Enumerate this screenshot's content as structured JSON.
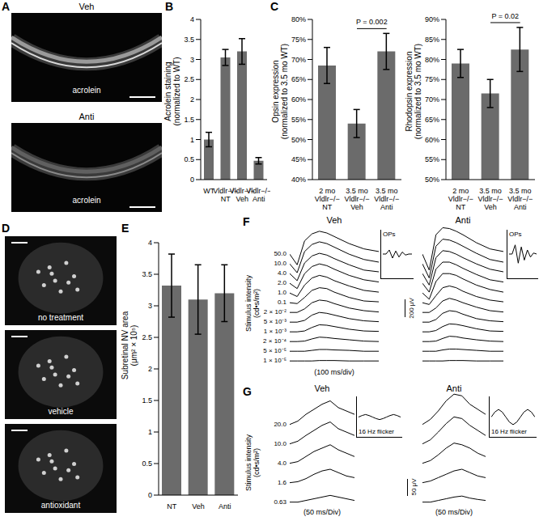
{
  "panel_labels": [
    "A",
    "B",
    "C",
    "D",
    "E",
    "F",
    "G"
  ],
  "images": {
    "A": [
      {
        "title": "Veh",
        "label": "acrolein"
      },
      {
        "title": "Anti",
        "label": "acrolein"
      }
    ],
    "D": [
      "no treatment",
      "vehicle",
      "antioxidant"
    ]
  },
  "chart_data": [
    {
      "type": "bar",
      "ylabel": "Acrolein staining (normalized to WT)",
      "categories": [
        "WT",
        "Vldlr−/− NT",
        "Vldlr−/− Veh",
        "Vldlr−/− Anti"
      ],
      "values": [
        1.0,
        3.05,
        3.2,
        0.47
      ],
      "errors": [
        0.18,
        0.2,
        0.32,
        0.08
      ],
      "color": "#6b6b6b",
      "ylim": [
        0,
        4
      ],
      "yticks": [
        0,
        0.5,
        1,
        1.5,
        2,
        2.5,
        3,
        3.5,
        4
      ]
    },
    {
      "type": "bar",
      "ylabel": "Opsin expression (normalized to 3.5 mo WT)",
      "categories": [
        "2 mo Vldlr−/− NT",
        "3.5 mo Vldlr−/− Veh",
        "3.5 mo Vldlr−/− Anti"
      ],
      "values": [
        68.5,
        54,
        72
      ],
      "errors": [
        4.5,
        3.5,
        4.5
      ],
      "color": "#6b6b6b",
      "ylim": [
        40,
        80
      ],
      "yticks": [
        {
          "value": 40,
          "label": "40%"
        },
        {
          "value": 45,
          "label": "45%"
        },
        {
          "value": 50,
          "label": "50%"
        },
        {
          "value": 55,
          "label": "55%"
        },
        {
          "value": 60,
          "label": "60%"
        },
        {
          "value": 65,
          "label": "65%"
        },
        {
          "value": 70,
          "label": "70%"
        },
        {
          "value": 75,
          "label": "75%"
        },
        {
          "value": 80,
          "label": "80%"
        }
      ],
      "annotations": [
        {
          "text": "P = 0.002",
          "categories": [
            "3.5 mo Vldlr−/− Veh",
            "3.5 mo Vldlr−/− Anti"
          ]
        }
      ]
    },
    {
      "type": "bar",
      "ylabel": "Rhodopsin expression (normalized to 3.5 mo WT)",
      "categories": [
        "2 mo Vldlr−/− NT",
        "3.5 mo Vldlr−/− Veh",
        "3.5 mo Vldlr−/− Anti"
      ],
      "values": [
        79,
        71.5,
        82.5
      ],
      "errors": [
        3.5,
        3.5,
        5.5
      ],
      "color": "#6b6b6b",
      "ylim": [
        50,
        90
      ],
      "yticks": [
        {
          "value": 50,
          "label": "50%"
        },
        {
          "value": 55,
          "label": "55%"
        },
        {
          "value": 60,
          "label": "60%"
        },
        {
          "value": 65,
          "label": "65%"
        },
        {
          "value": 70,
          "label": "70%"
        },
        {
          "value": 75,
          "label": "75%"
        },
        {
          "value": 80,
          "label": "80%"
        },
        {
          "value": 85,
          "label": "85%"
        },
        {
          "value": 90,
          "label": "90%"
        }
      ],
      "annotations": [
        {
          "text": "P = 0.02",
          "categories": [
            "3.5 mo Vldlr−/− Veh",
            "3.5 mo Vldlr−/− Anti"
          ]
        }
      ]
    },
    {
      "type": "bar",
      "ylabel": "Subretinal NV area (μm² × 10⁵)",
      "categories": [
        "NT",
        "Veh",
        "Anti"
      ],
      "values": [
        3.32,
        3.1,
        3.2
      ],
      "errors": [
        0.5,
        0.55,
        0.45
      ],
      "color": "#6b6b6b",
      "ylim": [
        0,
        4
      ],
      "yticks": [
        0,
        0.5,
        1,
        1.5,
        2,
        2.5,
        3,
        3.5,
        4
      ]
    },
    {
      "type": "line",
      "title": "Veh",
      "ylabel": "Stimulus intensity (cd•s/m²)",
      "xlabel": "(100 ms/div)",
      "tick_labels": false,
      "color": "#000000",
      "x": [
        0,
        25,
        50,
        75,
        100,
        125,
        150,
        200,
        250,
        300
      ],
      "xlim": [
        0,
        300
      ],
      "ylim": [
        -200,
        350
      ],
      "scale_bar": {
        "value": 200,
        "label": "200 μV"
      },
      "series": [
        {
          "name": "50.0",
          "values": [
            0,
            -120,
            150,
            230,
            260,
            240,
            200,
            120,
            60,
            30
          ]
        },
        {
          "name": "10.0",
          "values": [
            0,
            -100,
            140,
            220,
            250,
            230,
            190,
            110,
            50,
            20
          ]
        },
        {
          "name": "4.0",
          "values": [
            0,
            -80,
            120,
            200,
            230,
            210,
            170,
            100,
            40,
            20
          ]
        },
        {
          "name": "2.0",
          "values": [
            0,
            -60,
            110,
            190,
            220,
            200,
            160,
            90,
            40,
            15
          ]
        },
        {
          "name": "1.0",
          "values": [
            0,
            -40,
            90,
            170,
            200,
            180,
            140,
            80,
            30,
            10
          ]
        },
        {
          "name": "0.1",
          "values": [
            0,
            -10,
            60,
            140,
            170,
            160,
            120,
            60,
            20,
            10
          ]
        },
        {
          "name": "2 × 10⁻²",
          "values": [
            0,
            0,
            40,
            110,
            140,
            130,
            100,
            50,
            20,
            5
          ]
        },
        {
          "name": "5 × 10⁻³",
          "values": [
            0,
            0,
            20,
            80,
            110,
            100,
            80,
            40,
            15,
            5
          ]
        },
        {
          "name": "1 × 10⁻³",
          "values": [
            0,
            0,
            10,
            50,
            80,
            75,
            60,
            30,
            10,
            5
          ]
        },
        {
          "name": "2 × 10⁻⁴",
          "values": [
            0,
            0,
            5,
            30,
            50,
            45,
            35,
            20,
            5,
            0
          ]
        },
        {
          "name": "5 × 10⁻⁵",
          "values": [
            0,
            0,
            0,
            10,
            20,
            20,
            15,
            10,
            0,
            0
          ]
        },
        {
          "name": "1 × 10⁻⁵",
          "values": [
            0,
            0,
            0,
            0,
            5,
            5,
            5,
            0,
            0,
            0
          ]
        }
      ],
      "inset": {
        "title": "OPs",
        "x": [
          0,
          10,
          20,
          30,
          40,
          50,
          60,
          70,
          80,
          90
        ],
        "values": [
          0,
          0,
          4,
          -4,
          3,
          -3,
          2,
          -1,
          0,
          0
        ],
        "xlim": [
          0,
          90
        ],
        "ylim": [
          -12,
          12
        ]
      }
    },
    {
      "type": "line",
      "title": "Anti",
      "tick_labels": false,
      "color": "#000000",
      "x": [
        0,
        25,
        50,
        75,
        100,
        125,
        150,
        200,
        250,
        300
      ],
      "xlim": [
        0,
        300
      ],
      "ylim": [
        -200,
        350
      ],
      "series": [
        {
          "values": [
            0,
            -180,
            220,
            300,
            290,
            260,
            220,
            130,
            60,
            30
          ]
        },
        {
          "values": [
            0,
            -160,
            200,
            280,
            270,
            240,
            200,
            120,
            50,
            20
          ]
        },
        {
          "values": [
            0,
            -130,
            180,
            260,
            250,
            220,
            180,
            110,
            50,
            20
          ]
        },
        {
          "values": [
            0,
            -100,
            160,
            240,
            240,
            210,
            170,
            100,
            40,
            15
          ]
        },
        {
          "values": [
            0,
            -70,
            130,
            220,
            220,
            200,
            160,
            90,
            40,
            10
          ]
        },
        {
          "values": [
            0,
            -20,
            80,
            170,
            190,
            170,
            130,
            70,
            30,
            10
          ]
        },
        {
          "values": [
            0,
            0,
            50,
            130,
            160,
            140,
            110,
            60,
            20,
            5
          ]
        },
        {
          "values": [
            0,
            0,
            30,
            100,
            130,
            120,
            90,
            40,
            15,
            5
          ]
        },
        {
          "values": [
            0,
            0,
            15,
            60,
            90,
            85,
            70,
            35,
            10,
            5
          ]
        },
        {
          "values": [
            0,
            0,
            5,
            35,
            60,
            55,
            40,
            20,
            5,
            0
          ]
        },
        {
          "values": [
            0,
            0,
            0,
            15,
            25,
            25,
            20,
            10,
            0,
            0
          ]
        },
        {
          "values": [
            0,
            0,
            0,
            0,
            5,
            5,
            5,
            0,
            0,
            0
          ]
        }
      ],
      "inset": {
        "title": "OPs",
        "x": [
          0,
          10,
          20,
          30,
          40,
          50,
          60,
          70,
          80,
          90
        ],
        "values": [
          0,
          0,
          9,
          -9,
          7,
          -6,
          4,
          -3,
          1,
          0
        ],
        "xlim": [
          0,
          90
        ],
        "ylim": [
          -12,
          12
        ]
      }
    },
    {
      "type": "line",
      "title": "Veh",
      "ylabel": "Stimulus intensity (cd•s/m²)",
      "xlabel": "(50 ms/Div)",
      "tick_labels": false,
      "color": "#000000",
      "x": [
        0,
        25,
        50,
        75,
        100,
        125,
        150,
        175,
        200
      ],
      "xlim": [
        0,
        200
      ],
      "ylim": [
        -20,
        100
      ],
      "scale_bar": {
        "value": 50,
        "label": "50 μV"
      },
      "series": [
        {
          "name": "20.0",
          "values": [
            0,
            10,
            30,
            45,
            60,
            70,
            50,
            40,
            30
          ]
        },
        {
          "name": "10.0",
          "values": [
            0,
            8,
            25,
            40,
            55,
            65,
            45,
            35,
            25
          ]
        },
        {
          "name": "4.0",
          "values": [
            0,
            5,
            20,
            35,
            45,
            55,
            40,
            30,
            20
          ]
        },
        {
          "name": "1.6",
          "values": [
            0,
            3,
            12,
            25,
            35,
            40,
            30,
            20,
            15
          ]
        },
        {
          "name": "0.63",
          "values": [
            0,
            0,
            5,
            10,
            15,
            20,
            15,
            10,
            5
          ]
        }
      ],
      "inset": {
        "title": "16 Hz flicker",
        "x": [
          0,
          10,
          20,
          30,
          40,
          50,
          60,
          70,
          80,
          90,
          100,
          110,
          120
        ],
        "values": [
          0,
          3,
          5,
          3,
          0,
          -3,
          -5,
          -3,
          0,
          3,
          5,
          3,
          0
        ],
        "xlim": [
          0,
          120
        ],
        "ylim": [
          -20,
          20
        ]
      }
    },
    {
      "type": "line",
      "title": "Anti",
      "xlabel": "(50 ms/Div)",
      "tick_labels": false,
      "color": "#000000",
      "x": [
        0,
        25,
        50,
        75,
        100,
        125,
        150,
        175,
        200
      ],
      "xlim": [
        0,
        200
      ],
      "ylim": [
        -20,
        100
      ],
      "series": [
        {
          "values": [
            0,
            15,
            40,
            70,
            90,
            85,
            60,
            45,
            30
          ]
        },
        {
          "values": [
            0,
            12,
            35,
            60,
            80,
            75,
            55,
            40,
            25
          ]
        },
        {
          "values": [
            0,
            8,
            25,
            45,
            60,
            55,
            45,
            30,
            20
          ]
        },
        {
          "values": [
            0,
            5,
            15,
            25,
            35,
            40,
            30,
            20,
            15
          ]
        },
        {
          "values": [
            0,
            0,
            5,
            10,
            15,
            18,
            12,
            8,
            5
          ]
        }
      ],
      "inset": {
        "title": "16 Hz flicker",
        "x": [
          0,
          10,
          20,
          30,
          40,
          50,
          60,
          70,
          80,
          90,
          100,
          110,
          120
        ],
        "values": [
          0,
          10,
          15,
          10,
          0,
          -10,
          -15,
          -10,
          0,
          10,
          15,
          10,
          0
        ],
        "xlim": [
          0,
          120
        ],
        "ylim": [
          -20,
          20
        ]
      }
    }
  ]
}
